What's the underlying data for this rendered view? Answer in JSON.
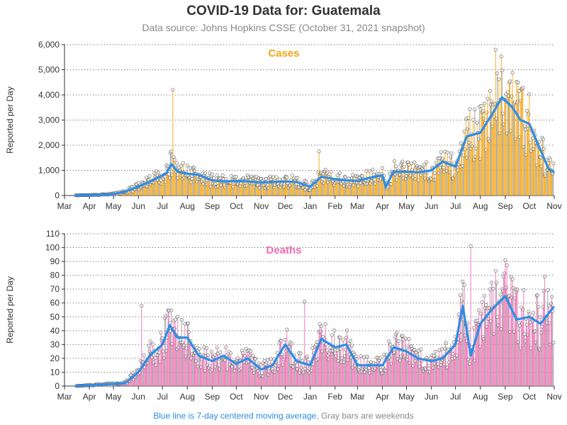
{
  "header": {
    "title": "COVID-19 Data for: Guatemala",
    "subtitle": "Data source: Johns Hopkins CSSE (October 31, 2021 snapshot)"
  },
  "footnote": {
    "blue_text": "Blue line is 7-day centered moving average",
    "separator": ",",
    "gray_text": "Gray bars are weekends"
  },
  "colors": {
    "cases_bar": "#f5a50f",
    "deaths_bar": "#f06fb4",
    "weekend_bar": "#9a9a9a",
    "moving_average": "#2f8de6"
  },
  "chart_data": [
    {
      "type": "bar",
      "title": "Cases",
      "ylabel": "Reported per Day",
      "ylim": [
        0,
        6000
      ],
      "yticks": [
        "0",
        "1,000",
        "2,000",
        "3,000",
        "4,000",
        "5,000",
        "6,000"
      ],
      "ytick_values": [
        0,
        1000,
        2000,
        3000,
        4000,
        5000,
        6000
      ],
      "x_range": [
        "2020-03-01",
        "2021-11-01"
      ],
      "xticks": [
        "Mar",
        "Apr",
        "May",
        "Jun",
        "Jul",
        "Aug",
        "Sep",
        "Oct",
        "Nov",
        "Dec",
        "Jan",
        "Feb",
        "Mar",
        "Apr",
        "May",
        "Jun",
        "Jul",
        "Aug",
        "Sep",
        "Oct",
        "Nov"
      ],
      "grid": "horizontal dotted",
      "series": [
        {
          "name": "7-day centered moving average",
          "x": [
            "2020-03-15",
            "2020-04-01",
            "2020-04-15",
            "2020-05-01",
            "2020-05-15",
            "2020-06-01",
            "2020-06-15",
            "2020-07-01",
            "2020-07-06",
            "2020-07-12",
            "2020-07-20",
            "2020-08-01",
            "2020-08-15",
            "2020-09-01",
            "2020-09-15",
            "2020-10-01",
            "2020-10-15",
            "2020-11-01",
            "2020-11-15",
            "2020-12-01",
            "2020-12-15",
            "2021-01-01",
            "2021-01-15",
            "2021-02-01",
            "2021-02-15",
            "2021-03-01",
            "2021-03-15",
            "2021-04-01",
            "2021-04-05",
            "2021-04-15",
            "2021-05-01",
            "2021-05-15",
            "2021-06-01",
            "2021-06-15",
            "2021-07-01",
            "2021-07-15",
            "2021-08-01",
            "2021-08-15",
            "2021-08-28",
            "2021-09-10",
            "2021-09-20",
            "2021-10-01",
            "2021-10-15",
            "2021-10-25",
            "2021-10-31"
          ],
          "y": [
            5,
            15,
            30,
            60,
            150,
            350,
            550,
            800,
            900,
            1250,
            950,
            870,
            820,
            600,
            560,
            580,
            560,
            520,
            540,
            560,
            540,
            350,
            750,
            650,
            600,
            580,
            700,
            800,
            350,
            950,
            950,
            920,
            1000,
            1350,
            1150,
            2350,
            2500,
            3200,
            3900,
            3500,
            3000,
            2850,
            1800,
            1050,
            950
          ]
        }
      ],
      "spikes": [
        {
          "x": "2020-07-14",
          "y": 4200
        },
        {
          "x": "2021-01-12",
          "y": 1750
        },
        {
          "x": "2021-08-20",
          "y": 5800
        }
      ]
    },
    {
      "type": "bar",
      "title": "Deaths",
      "ylabel": "Reported per Day",
      "ylim": [
        0,
        110
      ],
      "yticks": [
        "0",
        "10",
        "20",
        "30",
        "40",
        "50",
        "60",
        "70",
        "80",
        "90",
        "100",
        "110"
      ],
      "ytick_values": [
        0,
        10,
        20,
        30,
        40,
        50,
        60,
        70,
        80,
        90,
        100,
        110
      ],
      "x_range": [
        "2020-03-01",
        "2021-11-01"
      ],
      "xticks": [
        "Mar",
        "Apr",
        "May",
        "Jun",
        "Jul",
        "Aug",
        "Sep",
        "Oct",
        "Nov",
        "Dec",
        "Jan",
        "Feb",
        "Mar",
        "Apr",
        "May",
        "Jun",
        "Jul",
        "Aug",
        "Sep",
        "Oct",
        "Nov"
      ],
      "grid": "horizontal dotted",
      "series": [
        {
          "name": "7-day centered moving average",
          "x": [
            "2020-03-15",
            "2020-04-15",
            "2020-05-15",
            "2020-06-01",
            "2020-06-15",
            "2020-07-01",
            "2020-07-10",
            "2020-07-20",
            "2020-08-01",
            "2020-08-15",
            "2020-09-01",
            "2020-09-15",
            "2020-10-01",
            "2020-10-15",
            "2020-11-01",
            "2020-11-15",
            "2020-12-01",
            "2020-12-15",
            "2021-01-01",
            "2021-01-15",
            "2021-02-01",
            "2021-02-15",
            "2021-03-01",
            "2021-03-15",
            "2021-04-01",
            "2021-04-15",
            "2021-05-01",
            "2021-05-15",
            "2021-06-01",
            "2021-06-15",
            "2021-07-01",
            "2021-07-10",
            "2021-07-20",
            "2021-08-01",
            "2021-08-15",
            "2021-09-01",
            "2021-09-15",
            "2021-10-01",
            "2021-10-15",
            "2021-10-31"
          ],
          "y": [
            0,
            1,
            2,
            10,
            22,
            30,
            44,
            35,
            35,
            22,
            18,
            22,
            16,
            20,
            12,
            15,
            30,
            18,
            15,
            34,
            28,
            30,
            15,
            15,
            15,
            28,
            25,
            20,
            18,
            20,
            30,
            58,
            22,
            45,
            55,
            65,
            48,
            50,
            45,
            57
          ]
        }
      ],
      "spikes": [
        {
          "x": "2020-06-05",
          "y": 58
        },
        {
          "x": "2020-12-25",
          "y": 61
        },
        {
          "x": "2021-07-20",
          "y": 101
        },
        {
          "x": "2021-09-01",
          "y": 91
        },
        {
          "x": "2021-10-20",
          "y": 79
        }
      ]
    }
  ]
}
